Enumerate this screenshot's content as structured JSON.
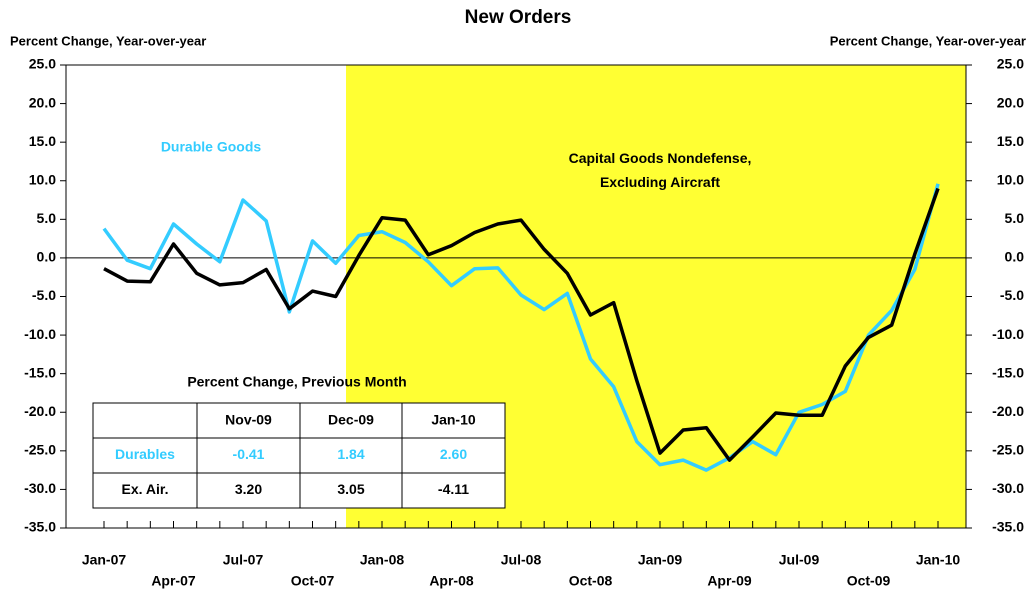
{
  "chart_data": {
    "type": "line",
    "title": "New Orders",
    "y_label": "Percent Change, Year-over-year",
    "y2_label": "Percent Change, Year-over-year",
    "categories": [
      "Jan-07",
      null,
      null,
      "Apr-07",
      null,
      null,
      "Jul-07",
      null,
      null,
      "Oct-07",
      null,
      null,
      "Jan-08",
      null,
      null,
      "Apr-08",
      null,
      null,
      "Jul-08",
      null,
      null,
      "Oct-08",
      null,
      null,
      "Jan-09",
      null,
      null,
      "Apr-09",
      null,
      null,
      "Jul-09",
      null,
      null,
      "Oct-09",
      null,
      null,
      "Jan-10"
    ],
    "series": [
      {
        "name": "Durable Goods",
        "color": "#33ccff",
        "values": [
          3.8,
          -0.3,
          -1.4,
          4.4,
          1.8,
          -0.5,
          7.5,
          4.8,
          -7.0,
          2.2,
          -0.7,
          2.9,
          3.4,
          2.0,
          -0.5,
          -3.6,
          -1.4,
          -1.3,
          -4.8,
          -6.7,
          -4.6,
          -13.1,
          -16.7,
          -23.8,
          -26.8,
          -26.2,
          -27.5,
          -25.9,
          -23.8,
          -25.5,
          -20.0,
          -19.0,
          -17.3,
          -10.0,
          -6.8,
          -1.5,
          9.6
        ]
      },
      {
        "name": "Capital Goods Nondefense, Excluding  Aircraft",
        "color": "#000000",
        "values": [
          -1.4,
          -3.0,
          -3.1,
          1.8,
          -2.0,
          -3.5,
          -3.2,
          -1.5,
          -6.6,
          -4.3,
          -5.0,
          0.3,
          5.2,
          4.9,
          0.4,
          1.6,
          3.3,
          4.4,
          4.9,
          1.1,
          -2.0,
          -7.4,
          -5.8,
          -15.9,
          -25.3,
          -22.3,
          -22.0,
          -26.2,
          -23.2,
          -20.1,
          -20.4,
          -20.4,
          -14.0,
          -10.3,
          -8.7,
          0.5,
          9.0
        ]
      }
    ],
    "ylim": [
      -35,
      25
    ],
    "yticks": [
      {
        "value": -35,
        "label": "-35.0"
      },
      {
        "value": -30,
        "label": "-30.0"
      },
      {
        "value": -25,
        "label": "-25.0"
      },
      {
        "value": -20,
        "label": "-20.0"
      },
      {
        "value": -15,
        "label": "-15.0"
      },
      {
        "value": -10,
        "label": "-10.0"
      },
      {
        "value": -5,
        "label": "-5.0"
      },
      {
        "value": 0,
        "label": "0.0"
      },
      {
        "value": 5,
        "label": "5.0"
      },
      {
        "value": 10,
        "label": "10.0"
      },
      {
        "value": 15,
        "label": "15.0"
      },
      {
        "value": 20,
        "label": "20.0"
      },
      {
        "value": 25,
        "label": "25.0"
      }
    ],
    "y2lim": [
      -35,
      25
    ],
    "y2ticks": [
      {
        "value": -35,
        "label": "-35.0"
      },
      {
        "value": -30,
        "label": "-30.0"
      },
      {
        "value": -25,
        "label": "-25.0"
      },
      {
        "value": -20,
        "label": "-20.0"
      },
      {
        "value": -15,
        "label": "-15.0"
      },
      {
        "value": -10,
        "label": "-10.0"
      },
      {
        "value": -5,
        "label": "-5.0"
      },
      {
        "value": 0,
        "label": "0.0"
      },
      {
        "value": 5,
        "label": "5.0"
      },
      {
        "value": 10,
        "label": "10.0"
      },
      {
        "value": 15,
        "label": "15.0"
      },
      {
        "value": 20,
        "label": "20.0"
      },
      {
        "value": 25,
        "label": "25.0"
      }
    ],
    "grid": false
  },
  "table": {
    "title": "Percent Change, Previous Month",
    "columns": [
      "Nov-09",
      "Dec-09",
      "Jan-10"
    ],
    "rows": [
      {
        "label": "Durables",
        "color": "#33ccff",
        "values": [
          "-0.41",
          "1.84",
          "2.60"
        ]
      },
      {
        "label": "Ex. Air.",
        "color": "#000000",
        "values": [
          "3.20",
          "3.05",
          "-4.11"
        ]
      }
    ]
  }
}
